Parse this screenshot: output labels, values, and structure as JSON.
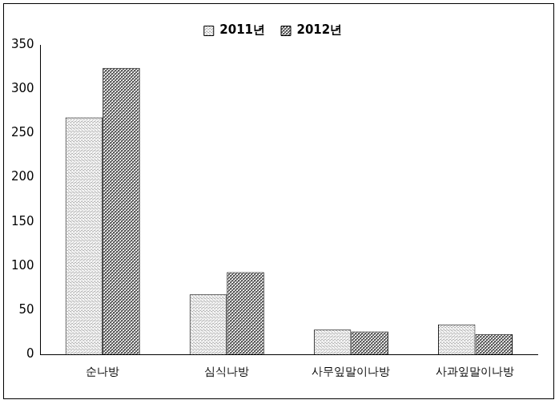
{
  "chart_data": {
    "type": "bar",
    "categories": [
      "순나방",
      "심식나방",
      "사무잎말이나방",
      "사과잎말이나방"
    ],
    "series": [
      {
        "name": "2011년",
        "color": "#b0b0b0",
        "values": [
          268,
          68,
          28,
          34
        ]
      },
      {
        "name": "2012년",
        "color": "#606060",
        "values": [
          324,
          93,
          26,
          23
        ]
      }
    ],
    "ylim": [
      0,
      350
    ],
    "yticks": [
      0,
      50,
      100,
      150,
      200,
      250,
      300,
      350
    ],
    "grid": false,
    "legend": "top"
  }
}
